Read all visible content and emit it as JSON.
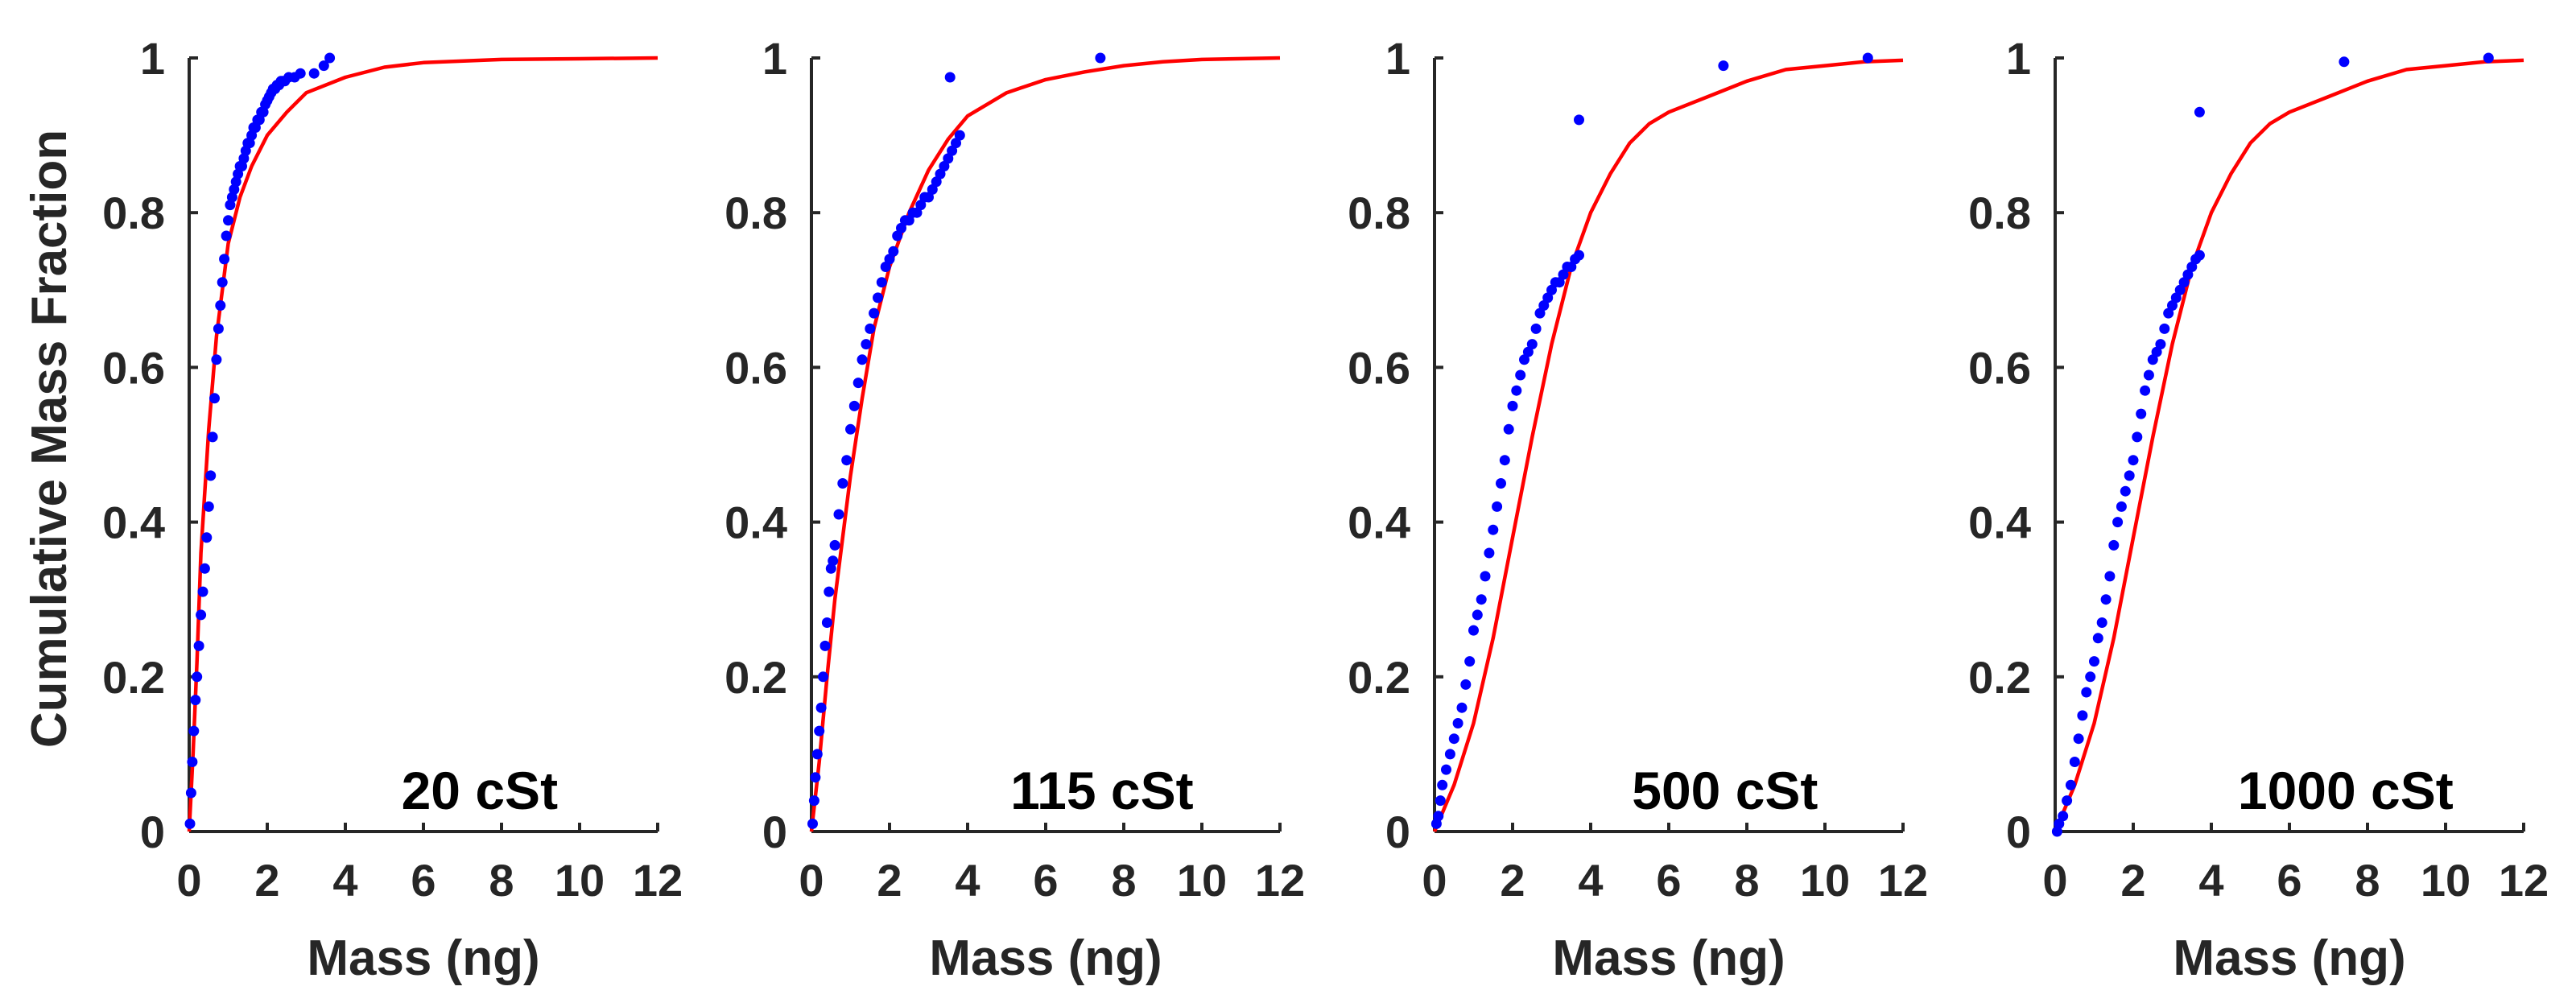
{
  "figure": {
    "ylabel": "Cumulative Mass Fraction",
    "xlabel": "Mass (ng)"
  },
  "chart_data": [
    {
      "type": "line",
      "label": "20 cSt",
      "xlabel": "Mass (ng)",
      "ylabel": "Cumulative Mass Fraction",
      "xlim": [
        0,
        12
      ],
      "ylim": [
        0,
        1
      ],
      "xticks": [
        0,
        2,
        4,
        6,
        8,
        10,
        12
      ],
      "yticks": [
        0,
        0.2,
        0.4,
        0.6,
        0.8,
        1
      ],
      "grid": false,
      "colors": {
        "data": "#0000ff",
        "fit": "#ff0000"
      },
      "series": [
        {
          "kind": "fit-line",
          "x": [
            0,
            0.1,
            0.2,
            0.3,
            0.5,
            0.7,
            1,
            1.3,
            1.6,
            2,
            2.5,
            3,
            4,
            5,
            6,
            8,
            10,
            12
          ],
          "y": [
            0,
            0.1,
            0.22,
            0.36,
            0.52,
            0.64,
            0.76,
            0.82,
            0.86,
            0.9,
            0.93,
            0.955,
            0.975,
            0.988,
            0.994,
            0.998,
            0.999,
            1.0
          ]
        },
        {
          "kind": "data-points",
          "x": [
            0.02,
            0.05,
            0.08,
            0.12,
            0.16,
            0.2,
            0.25,
            0.3,
            0.35,
            0.4,
            0.45,
            0.5,
            0.55,
            0.6,
            0.65,
            0.7,
            0.75,
            0.8,
            0.85,
            0.9,
            0.95,
            1.0,
            1.05,
            1.1,
            1.15,
            1.2,
            1.25,
            1.3,
            1.35,
            1.4,
            1.45,
            1.5,
            1.55,
            1.6,
            1.65,
            1.7,
            1.75,
            1.8,
            1.85,
            1.9,
            1.95,
            2.0,
            2.05,
            2.1,
            2.15,
            2.2,
            2.25,
            2.3,
            2.35,
            2.4,
            2.45,
            2.55,
            2.7,
            2.85,
            3.2,
            3.45,
            3.6
          ],
          "y": [
            0.01,
            0.05,
            0.09,
            0.13,
            0.17,
            0.2,
            0.24,
            0.28,
            0.31,
            0.34,
            0.38,
            0.42,
            0.46,
            0.51,
            0.56,
            0.61,
            0.65,
            0.68,
            0.71,
            0.74,
            0.77,
            0.79,
            0.81,
            0.82,
            0.83,
            0.84,
            0.85,
            0.86,
            0.86,
            0.87,
            0.88,
            0.89,
            0.89,
            0.9,
            0.91,
            0.91,
            0.92,
            0.92,
            0.93,
            0.93,
            0.94,
            0.945,
            0.95,
            0.955,
            0.96,
            0.96,
            0.965,
            0.965,
            0.97,
            0.97,
            0.97,
            0.975,
            0.975,
            0.98,
            0.98,
            0.99,
            1.0
          ]
        }
      ]
    },
    {
      "type": "line",
      "label": "115 cSt",
      "xlabel": "Mass (ng)",
      "xlim": [
        0,
        12
      ],
      "ylim": [
        0,
        1
      ],
      "xticks": [
        0,
        2,
        4,
        6,
        8,
        10,
        12
      ],
      "yticks": [
        0,
        0.2,
        0.4,
        0.6,
        0.8,
        1
      ],
      "grid": false,
      "colors": {
        "data": "#0000ff",
        "fit": "#ff0000"
      },
      "series": [
        {
          "kind": "fit-line",
          "x": [
            0,
            0.2,
            0.4,
            0.6,
            0.8,
            1,
            1.3,
            1.6,
            2,
            2.5,
            3,
            3.5,
            4,
            5,
            6,
            7,
            8,
            9,
            10,
            12
          ],
          "y": [
            0,
            0.09,
            0.2,
            0.3,
            0.38,
            0.46,
            0.56,
            0.65,
            0.73,
            0.8,
            0.855,
            0.895,
            0.925,
            0.955,
            0.972,
            0.982,
            0.99,
            0.995,
            0.998,
            1.0
          ]
        },
        {
          "kind": "data-points",
          "x": [
            0.03,
            0.07,
            0.1,
            0.15,
            0.2,
            0.25,
            0.3,
            0.35,
            0.4,
            0.45,
            0.5,
            0.55,
            0.6,
            0.7,
            0.8,
            0.9,
            1.0,
            1.1,
            1.2,
            1.3,
            1.4,
            1.5,
            1.6,
            1.7,
            1.8,
            1.9,
            2.0,
            2.1,
            2.2,
            2.3,
            2.4,
            2.5,
            2.6,
            2.7,
            2.8,
            2.9,
            3.0,
            3.1,
            3.2,
            3.3,
            3.4,
            3.5,
            3.6,
            3.7,
            3.8,
            3.55,
            7.4
          ],
          "y": [
            0.01,
            0.04,
            0.07,
            0.1,
            0.13,
            0.16,
            0.2,
            0.24,
            0.27,
            0.31,
            0.34,
            0.35,
            0.37,
            0.41,
            0.45,
            0.48,
            0.52,
            0.55,
            0.58,
            0.61,
            0.63,
            0.65,
            0.67,
            0.69,
            0.71,
            0.73,
            0.74,
            0.75,
            0.77,
            0.78,
            0.79,
            0.79,
            0.8,
            0.8,
            0.81,
            0.82,
            0.82,
            0.83,
            0.84,
            0.85,
            0.86,
            0.87,
            0.88,
            0.89,
            0.9,
            0.975,
            1.0
          ]
        }
      ]
    },
    {
      "type": "line",
      "label": "500 cSt",
      "xlabel": "Mass (ng)",
      "xlim": [
        0,
        12
      ],
      "ylim": [
        0,
        1
      ],
      "xticks": [
        0,
        2,
        4,
        6,
        8,
        10,
        12
      ],
      "yticks": [
        0,
        0.2,
        0.4,
        0.6,
        0.8,
        1
      ],
      "grid": false,
      "colors": {
        "data": "#0000ff",
        "fit": "#ff0000"
      },
      "series": [
        {
          "kind": "fit-line",
          "x": [
            0,
            0.5,
            1,
            1.5,
            2,
            2.5,
            3,
            3.5,
            4,
            4.5,
            5,
            5.5,
            6,
            7,
            8,
            9,
            10,
            11,
            12
          ],
          "y": [
            0,
            0.06,
            0.14,
            0.25,
            0.38,
            0.51,
            0.63,
            0.73,
            0.8,
            0.85,
            0.89,
            0.915,
            0.93,
            0.95,
            0.97,
            0.985,
            0.99,
            0.995,
            0.997
          ]
        },
        {
          "kind": "data-points",
          "x": [
            0.05,
            0.1,
            0.15,
            0.2,
            0.3,
            0.4,
            0.5,
            0.6,
            0.7,
            0.8,
            0.9,
            1.0,
            1.1,
            1.2,
            1.3,
            1.4,
            1.5,
            1.6,
            1.7,
            1.8,
            1.9,
            2.0,
            2.1,
            2.2,
            2.3,
            2.4,
            2.5,
            2.6,
            2.7,
            2.8,
            2.9,
            3.0,
            3.1,
            3.2,
            3.3,
            3.4,
            3.5,
            3.6,
            3.7,
            3.7,
            7.4,
            11.1
          ],
          "y": [
            0.01,
            0.02,
            0.04,
            0.06,
            0.08,
            0.1,
            0.12,
            0.14,
            0.16,
            0.19,
            0.22,
            0.26,
            0.28,
            0.3,
            0.33,
            0.36,
            0.39,
            0.42,
            0.45,
            0.48,
            0.52,
            0.55,
            0.57,
            0.59,
            0.61,
            0.62,
            0.63,
            0.65,
            0.67,
            0.68,
            0.69,
            0.7,
            0.71,
            0.71,
            0.72,
            0.73,
            0.73,
            0.74,
            0.745,
            0.92,
            0.99,
            1.0
          ]
        }
      ]
    },
    {
      "type": "line",
      "label": "1000 cSt",
      "xlabel": "Mass (ng)",
      "xlim": [
        0,
        12
      ],
      "ylim": [
        0,
        1
      ],
      "xticks": [
        0,
        2,
        4,
        6,
        8,
        10,
        12
      ],
      "yticks": [
        0,
        0.2,
        0.4,
        0.6,
        0.8,
        1
      ],
      "grid": false,
      "colors": {
        "data": "#0000ff",
        "fit": "#ff0000"
      },
      "series": [
        {
          "kind": "fit-line",
          "x": [
            0,
            0.5,
            1,
            1.5,
            2,
            2.5,
            3,
            3.5,
            4,
            4.5,
            5,
            5.5,
            6,
            7,
            8,
            9,
            10,
            11,
            12
          ],
          "y": [
            0,
            0.06,
            0.14,
            0.25,
            0.38,
            0.51,
            0.63,
            0.73,
            0.8,
            0.85,
            0.89,
            0.915,
            0.93,
            0.95,
            0.97,
            0.985,
            0.99,
            0.995,
            0.997
          ]
        },
        {
          "kind": "data-points",
          "x": [
            0.05,
            0.1,
            0.2,
            0.3,
            0.4,
            0.5,
            0.6,
            0.7,
            0.8,
            0.9,
            1.0,
            1.1,
            1.2,
            1.3,
            1.4,
            1.5,
            1.6,
            1.7,
            1.8,
            1.9,
            2.0,
            2.1,
            2.2,
            2.3,
            2.4,
            2.5,
            2.6,
            2.7,
            2.8,
            2.9,
            3.0,
            3.1,
            3.2,
            3.3,
            3.4,
            3.5,
            3.6,
            3.7,
            3.7,
            7.4,
            11.1
          ],
          "y": [
            0.0,
            0.01,
            0.02,
            0.04,
            0.06,
            0.09,
            0.12,
            0.15,
            0.18,
            0.2,
            0.22,
            0.25,
            0.27,
            0.3,
            0.33,
            0.37,
            0.4,
            0.42,
            0.44,
            0.46,
            0.48,
            0.51,
            0.54,
            0.57,
            0.59,
            0.61,
            0.62,
            0.63,
            0.65,
            0.67,
            0.68,
            0.69,
            0.7,
            0.71,
            0.72,
            0.73,
            0.74,
            0.745,
            0.93,
            0.995,
            1.0
          ]
        }
      ]
    }
  ]
}
